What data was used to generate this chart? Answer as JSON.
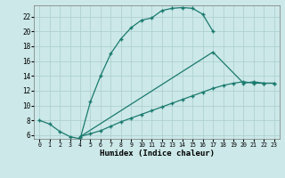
{
  "title": "",
  "xlabel": "Humidex (Indice chaleur)",
  "bg_color": "#cce8e8",
  "line_color": "#1a7a6e",
  "grid_color": "#aacece",
  "xlim": [
    -0.5,
    23.5
  ],
  "ylim": [
    5.5,
    23.5
  ],
  "xticks": [
    0,
    1,
    2,
    3,
    4,
    5,
    6,
    7,
    8,
    9,
    10,
    11,
    12,
    13,
    14,
    15,
    16,
    17,
    18,
    19,
    20,
    21,
    22,
    23
  ],
  "yticks": [
    6,
    8,
    10,
    12,
    14,
    16,
    18,
    20,
    22
  ],
  "line1_y": [
    8.0,
    7.5,
    6.5,
    5.8,
    5.5,
    10.5,
    14.0,
    17.0,
    19.0,
    20.5,
    21.5,
    21.8,
    22.8,
    23.1,
    23.2,
    23.1,
    22.3,
    20.0,
    null,
    null,
    null,
    null,
    null,
    null
  ],
  "line2_y": [
    null,
    null,
    null,
    null,
    5.8,
    null,
    null,
    null,
    null,
    null,
    null,
    null,
    null,
    null,
    null,
    null,
    null,
    17.2,
    null,
    null,
    null,
    null,
    null,
    null
  ],
  "line2_full": [
    [
      4,
      5.8
    ],
    [
      17,
      17.2
    ],
    [
      20,
      13.0
    ],
    [
      21,
      13.2
    ],
    [
      22,
      13.0
    ],
    [
      23,
      13.0
    ]
  ],
  "line3_y": [
    null,
    null,
    null,
    null,
    5.8,
    6.2,
    6.6,
    7.2,
    7.8,
    8.3,
    8.8,
    9.3,
    9.8,
    10.3,
    10.8,
    11.3,
    11.8,
    12.3,
    12.7,
    13.0,
    13.2,
    13.0,
    13.0,
    13.0
  ]
}
